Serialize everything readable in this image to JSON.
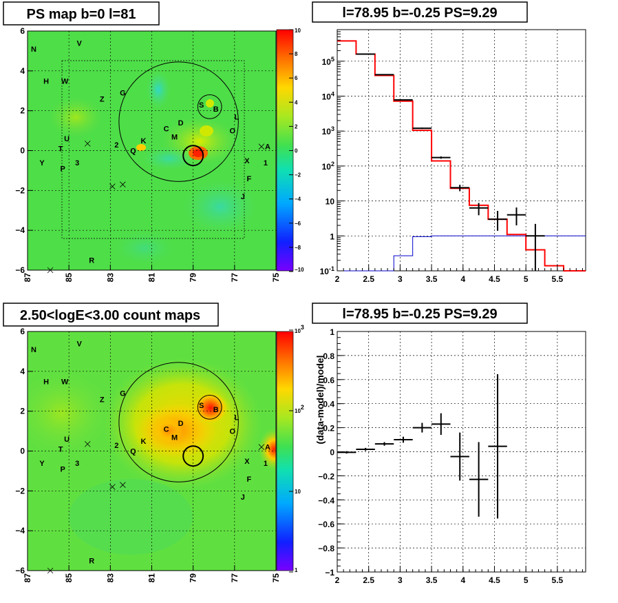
{
  "chart_data": [
    {
      "type": "heatmap",
      "title": "PS map b=0 l=81",
      "x_ticks": [
        "87",
        "85",
        "83",
        "81",
        "79",
        "77",
        "75"
      ],
      "y_ticks": [
        "6",
        "4",
        "2",
        "0",
        "−2",
        "−4",
        "−6"
      ],
      "xlim": [
        87,
        75
      ],
      "ylim": [
        -6,
        6
      ],
      "colorbar_ticks": [
        "10",
        "8",
        "6",
        "4",
        "2",
        "0",
        "−2",
        "−4",
        "−6",
        "−8",
        "−10"
      ],
      "colorbar_range": [
        -10,
        10
      ],
      "sources": [
        {
          "label": "N",
          "l": 86.7,
          "b": 5.1
        },
        {
          "label": "V",
          "l": 84.5,
          "b": 5.4
        },
        {
          "label": "H",
          "l": 86.1,
          "b": 3.5
        },
        {
          "label": "W",
          "l": 85.2,
          "b": 3.5
        },
        {
          "label": "Z",
          "l": 83.4,
          "b": 2.6
        },
        {
          "label": "G",
          "l": 82.4,
          "b": 2.9
        },
        {
          "label": "S",
          "l": 78.6,
          "b": 2.3
        },
        {
          "label": "B",
          "l": 77.9,
          "b": 2.1
        },
        {
          "label": "L",
          "l": 76.9,
          "b": 1.7
        },
        {
          "label": "D",
          "l": 79.6,
          "b": 1.4
        },
        {
          "label": "C",
          "l": 80.3,
          "b": 1.1
        },
        {
          "label": "M",
          "l": 79.9,
          "b": 0.7
        },
        {
          "label": "O",
          "l": 77.1,
          "b": 1.0
        },
        {
          "label": "K",
          "l": 81.4,
          "b": 0.5
        },
        {
          "label": "2",
          "l": 82.7,
          "b": 0.3
        },
        {
          "label": "Q",
          "l": 81.9,
          "b": 0.0
        },
        {
          "label": "U",
          "l": 85.1,
          "b": 0.6
        },
        {
          "label": "T",
          "l": 85.4,
          "b": 0.1
        },
        {
          "label": "A",
          "l": 75.4,
          "b": 0.2
        },
        {
          "label": "X",
          "l": 76.4,
          "b": -0.5
        },
        {
          "label": "1",
          "l": 75.5,
          "b": -0.6
        },
        {
          "label": "Y",
          "l": 86.3,
          "b": -0.6
        },
        {
          "label": "P",
          "l": 85.3,
          "b": -0.9
        },
        {
          "label": "3",
          "l": 84.6,
          "b": -0.6
        },
        {
          "label": "F",
          "l": 76.3,
          "b": -1.4
        },
        {
          "label": "J",
          "l": 76.6,
          "b": -2.3
        },
        {
          "label": "R",
          "l": 83.9,
          "b": -5.5
        }
      ],
      "crosses": [
        {
          "l": 84.1,
          "b": 0.35
        },
        {
          "l": 82.9,
          "b": -1.8
        },
        {
          "l": 82.4,
          "b": -1.7
        },
        {
          "l": 75.7,
          "b": 0.2
        },
        {
          "l": 85.9,
          "b": -6.0
        }
      ],
      "circles": [
        {
          "l": 79.7,
          "b": 1.45,
          "r": 3.0
        },
        {
          "l": 78.2,
          "b": 2.2,
          "r": 0.6
        },
        {
          "l": 79.0,
          "b": -0.25,
          "r": 0.5
        }
      ]
    },
    {
      "type": "line",
      "title": "l=78.95 b=-0.25 PS=9.29",
      "x_ticks": [
        "2",
        "2.5",
        "3",
        "3.5",
        "4",
        "4.5",
        "5",
        "5.5"
      ],
      "y_ticks": [
        "10^-1",
        "1",
        "10",
        "10^2",
        "10^3",
        "10^4",
        "10^5"
      ],
      "xlim": [
        2,
        5.95
      ],
      "ylim": [
        0.1,
        800000
      ],
      "y_scale": "log",
      "bin_edges": [
        2.0,
        2.3,
        2.6,
        2.9,
        3.2,
        3.5,
        3.8,
        4.1,
        4.4,
        4.7,
        5.0,
        5.3,
        5.6,
        5.95
      ],
      "series": [
        {
          "values": [
            380000,
            160000,
            39000,
            7200,
            1050,
            140,
            23,
            7.5,
            3.0,
            1.1,
            0.4,
            0.14,
            0.1
          ]
        },
        {
          "values": [
            0.0,
            0.0,
            0.0,
            0.27,
            0.95,
            1.0,
            1.0,
            1.0,
            1.0,
            1.0,
            1.0,
            1.0,
            1.0
          ]
        }
      ],
      "points": [
        {
          "x": 2.45,
          "y": 160000,
          "xerr": 0.15,
          "ylo": 158000,
          "yhi": 162000
        },
        {
          "x": 2.75,
          "y": 41000,
          "xerr": 0.15,
          "ylo": 40000,
          "yhi": 42000
        },
        {
          "x": 3.05,
          "y": 7800,
          "xerr": 0.15,
          "ylo": 7600,
          "yhi": 8000
        },
        {
          "x": 3.35,
          "y": 1200,
          "xerr": 0.15,
          "ylo": 1150,
          "yhi": 1260
        },
        {
          "x": 3.65,
          "y": 175,
          "xerr": 0.15,
          "ylo": 162,
          "yhi": 188
        },
        {
          "x": 3.95,
          "y": 24,
          "xerr": 0.15,
          "ylo": 19,
          "yhi": 29
        },
        {
          "x": 4.25,
          "y": 6.3,
          "xerr": 0.15,
          "ylo": 3.9,
          "yhi": 8.8
        },
        {
          "x": 4.55,
          "y": 3.0,
          "xerr": 0.15,
          "ylo": 1.4,
          "yhi": 5.2
        },
        {
          "x": 4.85,
          "y": 4.0,
          "xerr": 0.15,
          "ylo": 2.0,
          "yhi": 6.5
        },
        {
          "x": 5.15,
          "y": 1.0,
          "xerr": 0.15,
          "ylo": 0.1,
          "yhi": 2.2
        }
      ]
    },
    {
      "type": "heatmap",
      "title": "2.50<logE<3.00 count maps",
      "x_ticks": [
        "87",
        "85",
        "83",
        "81",
        "79",
        "77",
        "75"
      ],
      "y_ticks": [
        "6",
        "4",
        "2",
        "0",
        "−2",
        "−4",
        "−6"
      ],
      "xlim": [
        87,
        75
      ],
      "ylim": [
        -6,
        6
      ],
      "colorbar_ticks": [
        "10^3",
        "10^2",
        "10",
        "1"
      ],
      "colorbar_range": [
        1,
        1000
      ],
      "colorbar_scale": "log"
    },
    {
      "type": "scatter",
      "title": "l=78.95 b=-0.25 PS=9.29",
      "ylabel": "(data-model)/model",
      "x_ticks": [
        "2",
        "2.5",
        "3",
        "3.5",
        "4",
        "4.5",
        "5",
        "5.5"
      ],
      "y_ticks": [
        "1",
        "0.8",
        "0.6",
        "0.4",
        "0.2",
        "0",
        "−0.2",
        "−0.4",
        "−0.6",
        "−0.8",
        "−1"
      ],
      "xlim": [
        2,
        5.95
      ],
      "ylim": [
        -1,
        1
      ],
      "points": [
        {
          "x": 2.15,
          "y": -0.005,
          "xerr": 0.15,
          "err": 0.01
        },
        {
          "x": 2.45,
          "y": 0.02,
          "xerr": 0.15,
          "err": 0.012
        },
        {
          "x": 2.75,
          "y": 0.065,
          "xerr": 0.15,
          "err": 0.015
        },
        {
          "x": 3.05,
          "y": 0.1,
          "xerr": 0.15,
          "err": 0.025
        },
        {
          "x": 3.35,
          "y": 0.2,
          "xerr": 0.15,
          "err": 0.04
        },
        {
          "x": 3.65,
          "y": 0.23,
          "xerr": 0.15,
          "err": 0.09
        },
        {
          "x": 3.95,
          "y": -0.04,
          "xerr": 0.15,
          "err": 0.2
        },
        {
          "x": 4.25,
          "y": -0.23,
          "xerr": 0.15,
          "err": 0.31
        },
        {
          "x": 4.55,
          "y": 0.045,
          "xerr": 0.15,
          "err": 0.6
        }
      ]
    }
  ]
}
